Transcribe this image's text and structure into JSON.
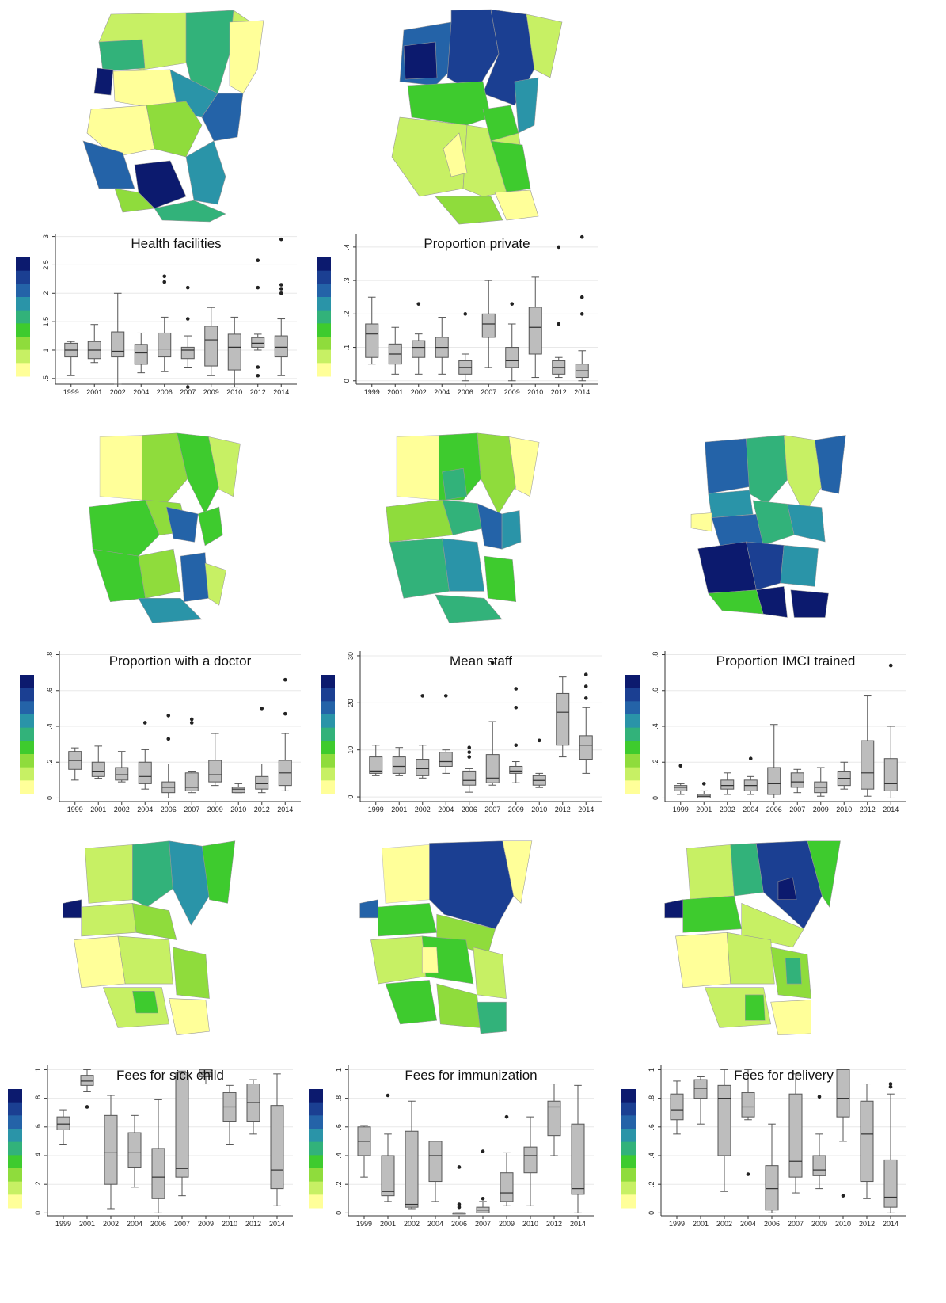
{
  "palette": [
    "#ffff99",
    "#c7f064",
    "#8fdc3c",
    "#3ecb2e",
    "#32b27a",
    "#2a94a8",
    "#2463a8",
    "#1b3f92",
    "#0c1a6e"
  ],
  "years": [
    "1999",
    "2001",
    "2002",
    "2004",
    "2006",
    "2007",
    "2009",
    "2010",
    "2012",
    "2014"
  ],
  "chart_data": [
    {
      "type": "box",
      "title": "Health facilities",
      "categories": [
        "1999",
        "2001",
        "2002",
        "2004",
        "2006",
        "2007",
        "2009",
        "2010",
        "2012",
        "2014"
      ],
      "ylim": [
        0.4,
        3.05
      ],
      "yticks": [
        {
          "v": 0.5,
          "t": ".5"
        },
        {
          "v": 1,
          "t": "1"
        },
        {
          "v": 1.5,
          "t": "1.5"
        },
        {
          "v": 2,
          "t": "2"
        },
        {
          "v": 2.5,
          "t": "2.5"
        },
        {
          "v": 3,
          "t": "3"
        }
      ],
      "boxes": [
        {
          "min": 0.55,
          "q1": 0.88,
          "med": 1.0,
          "q3": 1.12,
          "max": 1.15,
          "out": []
        },
        {
          "min": 0.78,
          "q1": 0.85,
          "med": 1.0,
          "q3": 1.15,
          "max": 1.45,
          "out": []
        },
        {
          "min": 0.4,
          "q1": 0.88,
          "med": 0.98,
          "q3": 1.32,
          "max": 2.0,
          "out": []
        },
        {
          "min": 0.6,
          "q1": 0.75,
          "med": 0.95,
          "q3": 1.1,
          "max": 1.3,
          "out": []
        },
        {
          "min": 0.62,
          "q1": 0.88,
          "med": 1.02,
          "q3": 1.3,
          "max": 1.58,
          "out": [
            2.2,
            2.3
          ]
        },
        {
          "min": 0.7,
          "q1": 0.85,
          "med": 1.0,
          "q3": 1.05,
          "max": 1.25,
          "out": [
            0.35,
            1.55,
            2.1
          ]
        },
        {
          "min": 0.55,
          "q1": 0.72,
          "med": 1.18,
          "q3": 1.42,
          "max": 1.75,
          "out": []
        },
        {
          "min": 0.35,
          "q1": 0.65,
          "med": 1.05,
          "q3": 1.28,
          "max": 1.58,
          "out": []
        },
        {
          "min": 1.0,
          "q1": 1.05,
          "med": 1.12,
          "q3": 1.22,
          "max": 1.28,
          "out": [
            0.55,
            0.7,
            2.1,
            2.58
          ]
        },
        {
          "min": 0.55,
          "q1": 0.88,
          "med": 1.05,
          "q3": 1.25,
          "max": 1.55,
          "out": [
            2.0,
            2.08,
            2.15,
            2.95
          ]
        }
      ]
    },
    {
      "type": "box",
      "title": "Proportion private",
      "categories": [
        "1999",
        "2001",
        "2002",
        "2004",
        "2006",
        "2007",
        "2009",
        "2010",
        "2012",
        "2014"
      ],
      "ylim": [
        -0.01,
        0.44
      ],
      "yticks": [
        {
          "v": 0,
          "t": "0"
        },
        {
          "v": 0.1,
          "t": ".1"
        },
        {
          "v": 0.2,
          "t": ".2"
        },
        {
          "v": 0.3,
          "t": ".3"
        },
        {
          "v": 0.4,
          "t": ".4"
        }
      ],
      "boxes": [
        {
          "min": 0.05,
          "q1": 0.07,
          "med": 0.14,
          "q3": 0.17,
          "max": 0.25,
          "out": []
        },
        {
          "min": 0.02,
          "q1": 0.05,
          "med": 0.08,
          "q3": 0.11,
          "max": 0.16,
          "out": []
        },
        {
          "min": 0.02,
          "q1": 0.07,
          "med": 0.1,
          "q3": 0.12,
          "max": 0.14,
          "out": [
            0.23
          ]
        },
        {
          "min": 0.02,
          "q1": 0.07,
          "med": 0.1,
          "q3": 0.13,
          "max": 0.19,
          "out": []
        },
        {
          "min": 0.0,
          "q1": 0.02,
          "med": 0.04,
          "q3": 0.06,
          "max": 0.08,
          "out": [
            0.2
          ]
        },
        {
          "min": 0.04,
          "q1": 0.13,
          "med": 0.17,
          "q3": 0.2,
          "max": 0.3,
          "out": []
        },
        {
          "min": 0.0,
          "q1": 0.04,
          "med": 0.06,
          "q3": 0.1,
          "max": 0.17,
          "out": [
            0.23
          ]
        },
        {
          "min": 0.01,
          "q1": 0.08,
          "med": 0.16,
          "q3": 0.22,
          "max": 0.31,
          "out": []
        },
        {
          "min": 0.01,
          "q1": 0.02,
          "med": 0.04,
          "q3": 0.06,
          "max": 0.07,
          "out": [
            0.17,
            0.4
          ]
        },
        {
          "min": 0.0,
          "q1": 0.01,
          "med": 0.03,
          "q3": 0.05,
          "max": 0.09,
          "out": [
            0.2,
            0.25,
            0.43
          ]
        }
      ]
    },
    {
      "type": "box",
      "title": "Proportion with a doctor",
      "categories": [
        "1999",
        "2001",
        "2002",
        "2004",
        "2006",
        "2007",
        "2009",
        "2010",
        "2012",
        "2014"
      ],
      "ylim": [
        -0.02,
        0.82
      ],
      "yticks": [
        {
          "v": 0,
          "t": "0"
        },
        {
          "v": 0.2,
          "t": ".2"
        },
        {
          "v": 0.4,
          "t": ".4"
        },
        {
          "v": 0.6,
          "t": ".6"
        },
        {
          "v": 0.8,
          "t": ".8"
        }
      ],
      "boxes": [
        {
          "min": 0.1,
          "q1": 0.16,
          "med": 0.21,
          "q3": 0.26,
          "max": 0.28,
          "out": []
        },
        {
          "min": 0.11,
          "q1": 0.12,
          "med": 0.15,
          "q3": 0.2,
          "max": 0.29,
          "out": []
        },
        {
          "min": 0.09,
          "q1": 0.1,
          "med": 0.13,
          "q3": 0.17,
          "max": 0.26,
          "out": []
        },
        {
          "min": 0.05,
          "q1": 0.08,
          "med": 0.12,
          "q3": 0.2,
          "max": 0.27,
          "out": [
            0.42
          ]
        },
        {
          "min": 0.0,
          "q1": 0.03,
          "med": 0.06,
          "q3": 0.09,
          "max": 0.19,
          "out": [
            0.33,
            0.46
          ]
        },
        {
          "min": 0.03,
          "q1": 0.04,
          "med": 0.06,
          "q3": 0.14,
          "max": 0.15,
          "out": [
            0.42,
            0.44
          ]
        },
        {
          "min": 0.07,
          "q1": 0.09,
          "med": 0.13,
          "q3": 0.21,
          "max": 0.36,
          "out": []
        },
        {
          "min": 0.03,
          "q1": 0.03,
          "med": 0.05,
          "q3": 0.06,
          "max": 0.08,
          "out": []
        },
        {
          "min": 0.03,
          "q1": 0.05,
          "med": 0.08,
          "q3": 0.12,
          "max": 0.19,
          "out": [
            0.5
          ]
        },
        {
          "min": 0.04,
          "q1": 0.07,
          "med": 0.14,
          "q3": 0.21,
          "max": 0.36,
          "out": [
            0.47,
            0.66
          ]
        }
      ]
    },
    {
      "type": "box",
      "title": "Mean staff",
      "categories": [
        "1999",
        "2001",
        "2002",
        "2004",
        "2006",
        "2007",
        "2009",
        "2010",
        "2012",
        "2014"
      ],
      "ylim": [
        -1,
        31
      ],
      "yticks": [
        {
          "v": 0,
          "t": "0"
        },
        {
          "v": 10,
          "t": "10"
        },
        {
          "v": 20,
          "t": "20"
        },
        {
          "v": 30,
          "t": "30"
        }
      ],
      "boxes": [
        {
          "min": 4.5,
          "q1": 5,
          "med": 5.5,
          "q3": 8.5,
          "max": 11,
          "out": []
        },
        {
          "min": 4.5,
          "q1": 5,
          "med": 6.5,
          "q3": 8.5,
          "max": 10.5,
          "out": []
        },
        {
          "min": 4,
          "q1": 4.5,
          "med": 6,
          "q3": 8,
          "max": 11,
          "out": [
            21.5
          ]
        },
        {
          "min": 5,
          "q1": 6.5,
          "med": 7.5,
          "q3": 9.5,
          "max": 10,
          "out": [
            21.5
          ]
        },
        {
          "min": 1,
          "q1": 2.5,
          "med": 3.5,
          "q3": 5.5,
          "max": 6,
          "out": [
            8.5,
            9.5,
            10.5
          ]
        },
        {
          "min": 2.5,
          "q1": 3,
          "med": 4,
          "q3": 9,
          "max": 16,
          "out": [
            28.5
          ]
        },
        {
          "min": 3,
          "q1": 5,
          "med": 5.5,
          "q3": 6.5,
          "max": 7.5,
          "out": [
            11,
            19,
            23
          ]
        },
        {
          "min": 2,
          "q1": 2.5,
          "med": 3.5,
          "q3": 4.5,
          "max": 5,
          "out": [
            12
          ]
        },
        {
          "min": 8.5,
          "q1": 11,
          "med": 18,
          "q3": 22,
          "max": 25.5,
          "out": []
        },
        {
          "min": 5,
          "q1": 8,
          "med": 11,
          "q3": 13,
          "max": 19,
          "out": [
            21,
            23.5,
            26
          ]
        }
      ]
    },
    {
      "type": "box",
      "title": "Proportion IMCI trained",
      "categories": [
        "1999",
        "2001",
        "2002",
        "2004",
        "2006",
        "2007",
        "2009",
        "2010",
        "2012",
        "2014"
      ],
      "ylim": [
        -0.02,
        0.82
      ],
      "yticks": [
        {
          "v": 0,
          "t": "0"
        },
        {
          "v": 0.2,
          "t": ".2"
        },
        {
          "v": 0.4,
          "t": ".4"
        },
        {
          "v": 0.6,
          "t": ".6"
        },
        {
          "v": 0.8,
          "t": ".8"
        }
      ],
      "boxes": [
        {
          "min": 0.02,
          "q1": 0.04,
          "med": 0.06,
          "q3": 0.07,
          "max": 0.08,
          "out": [
            0.18
          ]
        },
        {
          "min": 0.0,
          "q1": 0.0,
          "med": 0.01,
          "q3": 0.02,
          "max": 0.04,
          "out": [
            0.08
          ]
        },
        {
          "min": 0.02,
          "q1": 0.05,
          "med": 0.07,
          "q3": 0.1,
          "max": 0.14,
          "out": []
        },
        {
          "min": 0.02,
          "q1": 0.04,
          "med": 0.07,
          "q3": 0.1,
          "max": 0.12,
          "out": [
            0.22
          ]
        },
        {
          "min": 0.0,
          "q1": 0.02,
          "med": 0.08,
          "q3": 0.17,
          "max": 0.41,
          "out": []
        },
        {
          "min": 0.03,
          "q1": 0.06,
          "med": 0.09,
          "q3": 0.14,
          "max": 0.16,
          "out": []
        },
        {
          "min": 0.01,
          "q1": 0.03,
          "med": 0.06,
          "q3": 0.09,
          "max": 0.17,
          "out": []
        },
        {
          "min": 0.05,
          "q1": 0.07,
          "med": 0.11,
          "q3": 0.15,
          "max": 0.2,
          "out": []
        },
        {
          "min": 0.01,
          "q1": 0.05,
          "med": 0.14,
          "q3": 0.32,
          "max": 0.57,
          "out": []
        },
        {
          "min": 0.0,
          "q1": 0.04,
          "med": 0.08,
          "q3": 0.22,
          "max": 0.4,
          "out": [
            0.74
          ]
        }
      ]
    },
    {
      "type": "box",
      "title": "Fees for sick child",
      "categories": [
        "1999",
        "2001",
        "2002",
        "2004",
        "2006",
        "2007",
        "2009",
        "2010",
        "2012",
        "2014"
      ],
      "ylim": [
        -0.02,
        1.03
      ],
      "yticks": [
        {
          "v": 0,
          "t": "0"
        },
        {
          "v": 0.2,
          "t": ".2"
        },
        {
          "v": 0.4,
          "t": ".4"
        },
        {
          "v": 0.6,
          "t": ".6"
        },
        {
          "v": 0.8,
          "t": ".8"
        },
        {
          "v": 1,
          "t": "1"
        }
      ],
      "boxes": [
        {
          "min": 0.48,
          "q1": 0.58,
          "med": 0.62,
          "q3": 0.67,
          "max": 0.72,
          "out": []
        },
        {
          "min": 0.85,
          "q1": 0.89,
          "med": 0.92,
          "q3": 0.96,
          "max": 1.0,
          "out": [
            0.74
          ]
        },
        {
          "min": 0.03,
          "q1": 0.2,
          "med": 0.42,
          "q3": 0.68,
          "max": 0.82,
          "out": []
        },
        {
          "min": 0.18,
          "q1": 0.32,
          "med": 0.42,
          "q3": 0.56,
          "max": 0.68,
          "out": []
        },
        {
          "min": 0.0,
          "q1": 0.1,
          "med": 0.25,
          "q3": 0.45,
          "max": 0.79,
          "out": []
        },
        {
          "min": 0.12,
          "q1": 0.25,
          "med": 0.31,
          "q3": 0.98,
          "max": 0.99,
          "out": []
        },
        {
          "min": 0.9,
          "q1": 0.95,
          "med": 0.98,
          "q3": 1.0,
          "max": 1.0,
          "out": []
        },
        {
          "min": 0.48,
          "q1": 0.64,
          "med": 0.74,
          "q3": 0.84,
          "max": 0.89,
          "out": []
        },
        {
          "min": 0.55,
          "q1": 0.64,
          "med": 0.77,
          "q3": 0.9,
          "max": 0.93,
          "out": []
        },
        {
          "min": 0.05,
          "q1": 0.17,
          "med": 0.3,
          "q3": 0.75,
          "max": 0.97,
          "out": []
        }
      ]
    },
    {
      "type": "box",
      "title": "Fees for immunization",
      "categories": [
        "1999",
        "2001",
        "2002",
        "2004",
        "2006",
        "2007",
        "2009",
        "2010",
        "2012",
        "2014"
      ],
      "ylim": [
        -0.02,
        1.03
      ],
      "yticks": [
        {
          "v": 0,
          "t": "0"
        },
        {
          "v": 0.2,
          "t": ".2"
        },
        {
          "v": 0.4,
          "t": ".4"
        },
        {
          "v": 0.6,
          "t": ".6"
        },
        {
          "v": 0.8,
          "t": ".8"
        },
        {
          "v": 1,
          "t": "1"
        }
      ],
      "boxes": [
        {
          "min": 0.25,
          "q1": 0.4,
          "med": 0.5,
          "q3": 0.6,
          "max": 0.61,
          "out": []
        },
        {
          "min": 0.08,
          "q1": 0.12,
          "med": 0.15,
          "q3": 0.4,
          "max": 0.55,
          "out": [
            0.82
          ]
        },
        {
          "min": 0.03,
          "q1": 0.04,
          "med": 0.06,
          "q3": 0.57,
          "max": 0.78,
          "out": []
        },
        {
          "min": 0.08,
          "q1": 0.22,
          "med": 0.4,
          "q3": 0.5,
          "max": 0.5,
          "out": []
        },
        {
          "min": 0.0,
          "q1": 0.0,
          "med": 0.0,
          "q3": 0.0,
          "max": 0.0,
          "out": [
            0.04,
            0.06,
            0.32
          ]
        },
        {
          "min": 0.0,
          "q1": 0.0,
          "med": 0.02,
          "q3": 0.04,
          "max": 0.08,
          "out": [
            0.1,
            0.43
          ]
        },
        {
          "min": 0.05,
          "q1": 0.08,
          "med": 0.14,
          "q3": 0.28,
          "max": 0.42,
          "out": [
            0.67
          ]
        },
        {
          "min": 0.05,
          "q1": 0.28,
          "med": 0.4,
          "q3": 0.46,
          "max": 0.67,
          "out": []
        },
        {
          "min": 0.4,
          "q1": 0.54,
          "med": 0.74,
          "q3": 0.78,
          "max": 0.9,
          "out": []
        },
        {
          "min": 0.0,
          "q1": 0.13,
          "med": 0.17,
          "q3": 0.62,
          "max": 0.89,
          "out": []
        }
      ]
    },
    {
      "type": "box",
      "title": "Fees for delivery",
      "categories": [
        "1999",
        "2001",
        "2002",
        "2004",
        "2006",
        "2007",
        "2009",
        "2010",
        "2012",
        "2014"
      ],
      "ylim": [
        -0.02,
        1.03
      ],
      "yticks": [
        {
          "v": 0,
          "t": "0"
        },
        {
          "v": 0.2,
          "t": ".2"
        },
        {
          "v": 0.4,
          "t": ".4"
        },
        {
          "v": 0.6,
          "t": ".6"
        },
        {
          "v": 0.8,
          "t": ".8"
        },
        {
          "v": 1,
          "t": "1"
        }
      ],
      "boxes": [
        {
          "min": 0.55,
          "q1": 0.65,
          "med": 0.72,
          "q3": 0.83,
          "max": 0.92,
          "out": []
        },
        {
          "min": 0.62,
          "q1": 0.8,
          "med": 0.87,
          "q3": 0.93,
          "max": 0.95,
          "out": []
        },
        {
          "min": 0.15,
          "q1": 0.4,
          "med": 0.8,
          "q3": 0.89,
          "max": 1.0,
          "out": []
        },
        {
          "min": 0.65,
          "q1": 0.67,
          "med": 0.74,
          "q3": 0.84,
          "max": 1.0,
          "out": [
            0.27
          ]
        },
        {
          "min": 0.0,
          "q1": 0.02,
          "med": 0.17,
          "q3": 0.33,
          "max": 0.62,
          "out": []
        },
        {
          "min": 0.14,
          "q1": 0.25,
          "med": 0.36,
          "q3": 0.83,
          "max": 0.97,
          "out": []
        },
        {
          "min": 0.17,
          "q1": 0.26,
          "med": 0.3,
          "q3": 0.4,
          "max": 0.55,
          "out": [
            0.81
          ]
        },
        {
          "min": 0.5,
          "q1": 0.67,
          "med": 0.8,
          "q3": 1.0,
          "max": 1.0,
          "out": [
            0.12
          ]
        },
        {
          "min": 0.1,
          "q1": 0.22,
          "med": 0.55,
          "q3": 0.78,
          "max": 0.9,
          "out": []
        },
        {
          "min": 0.0,
          "q1": 0.04,
          "med": 0.11,
          "q3": 0.37,
          "max": 0.83,
          "out": [
            0.88,
            0.9
          ]
        }
      ]
    }
  ]
}
